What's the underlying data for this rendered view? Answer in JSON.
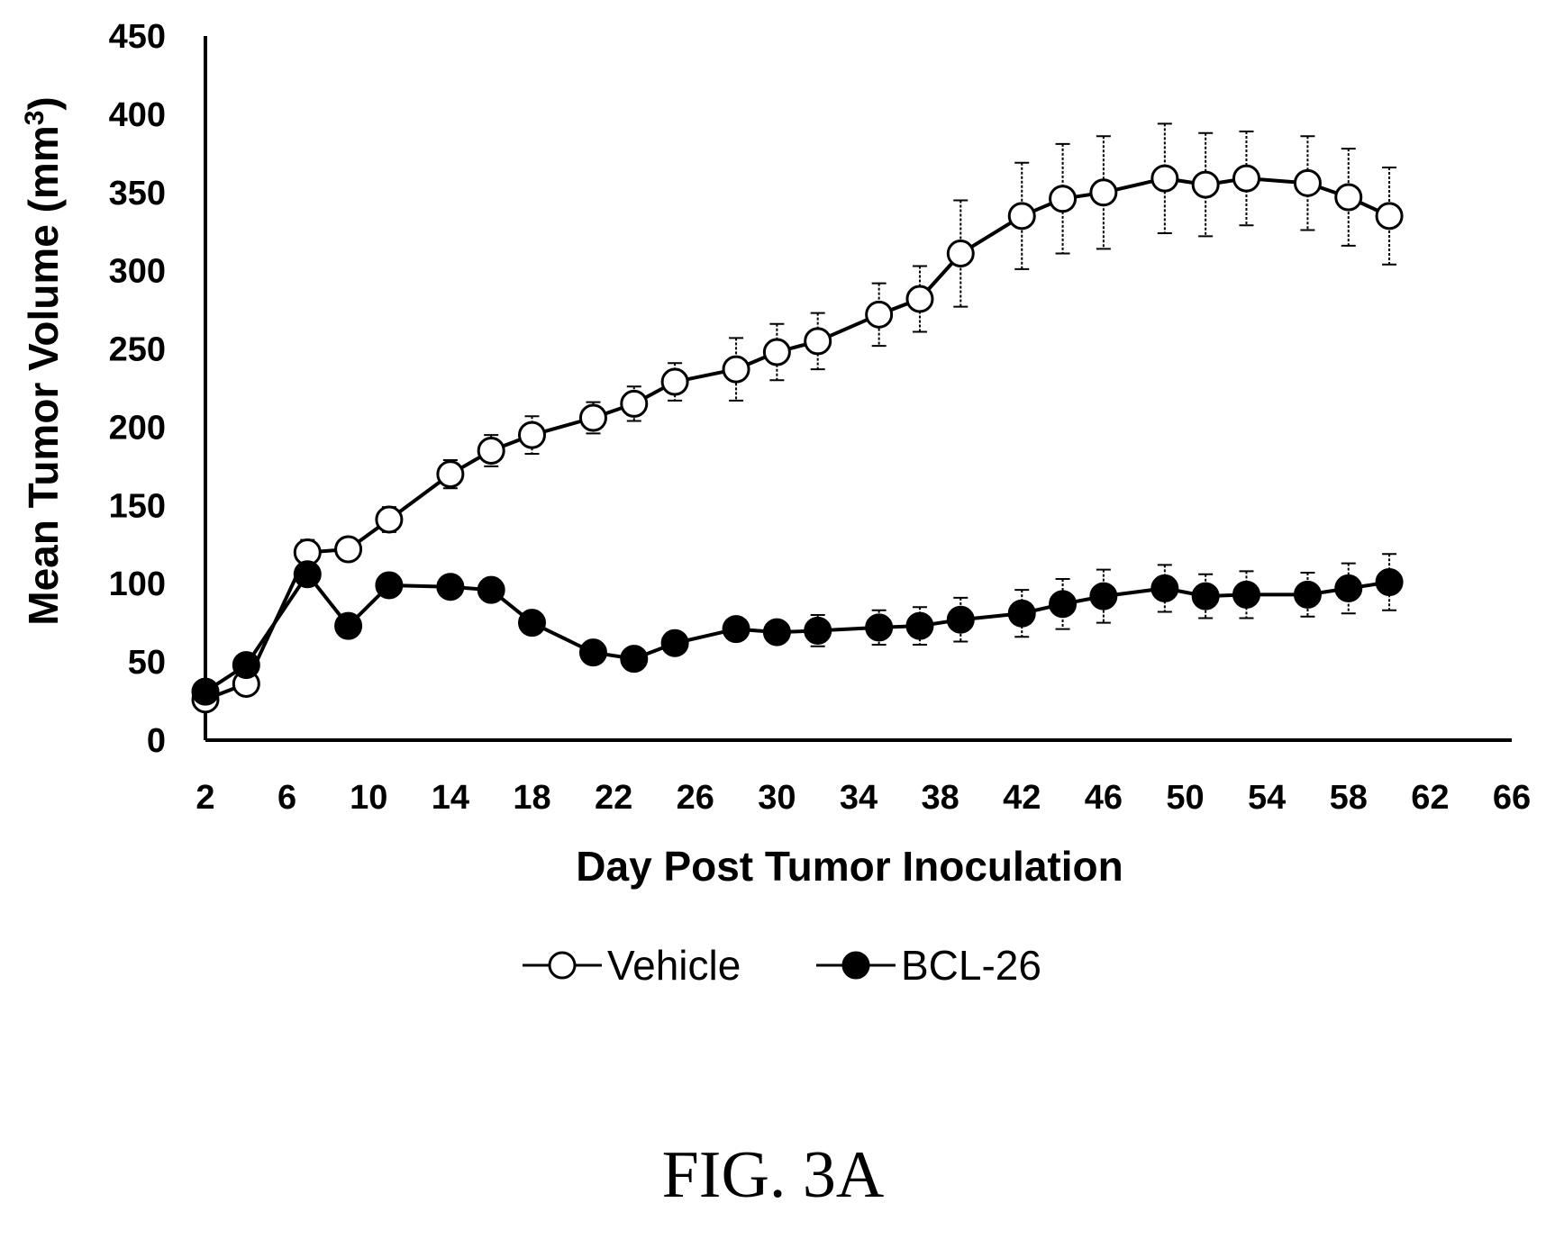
{
  "figure_label": "FIG. 3A",
  "chart_data": {
    "type": "line",
    "xlabel": "Day Post Tumor Inoculation",
    "ylabel": "Mean Tumor Volume (mm",
    "ylabel_superscript": "3",
    "ylabel_close": ")",
    "xlim": [
      2,
      66
    ],
    "ylim": [
      0,
      450
    ],
    "x_ticks": [
      2,
      6,
      10,
      14,
      18,
      22,
      26,
      30,
      34,
      38,
      42,
      46,
      50,
      54,
      58,
      62,
      66
    ],
    "y_ticks": [
      0,
      50,
      100,
      150,
      200,
      250,
      300,
      350,
      400,
      450
    ],
    "grid": false,
    "legend_position": "bottom-center",
    "series": [
      {
        "name": "Vehicle",
        "marker": "open-circle",
        "color": "#000000",
        "x": [
          2,
          4,
          7,
          9,
          11,
          14,
          16,
          18,
          21,
          23,
          25,
          28,
          30,
          32,
          35,
          37,
          39,
          42,
          44,
          46,
          49,
          51,
          53,
          56,
          58,
          60
        ],
        "y": [
          26,
          36,
          120,
          122,
          141,
          170,
          185,
          195,
          206,
          215,
          229,
          237,
          248,
          255,
          272,
          282,
          311,
          335,
          346,
          350,
          359,
          355,
          359,
          356,
          347,
          335
        ],
        "error": [
          3,
          4,
          8,
          7,
          8,
          9,
          10,
          12,
          10,
          11,
          12,
          20,
          18,
          18,
          20,
          21,
          34,
          34,
          35,
          36,
          35,
          33,
          30,
          30,
          31,
          31
        ]
      },
      {
        "name": "BCL-26",
        "marker": "filled-circle",
        "color": "#000000",
        "x": [
          2,
          4,
          7,
          9,
          11,
          14,
          16,
          18,
          21,
          23,
          25,
          28,
          30,
          32,
          35,
          37,
          39,
          42,
          44,
          46,
          49,
          51,
          53,
          56,
          58,
          60
        ],
        "y": [
          31,
          48,
          106,
          73,
          99,
          98,
          96,
          75,
          56,
          52,
          62,
          71,
          69,
          70,
          72,
          73,
          77,
          81,
          87,
          92,
          97,
          92,
          93,
          93,
          97,
          101
        ],
        "error": [
          2,
          3,
          6,
          5,
          4,
          4,
          4,
          4,
          4,
          3,
          4,
          4,
          4,
          10,
          11,
          12,
          14,
          15,
          16,
          17,
          15,
          14,
          15,
          14,
          16,
          18
        ]
      }
    ]
  }
}
